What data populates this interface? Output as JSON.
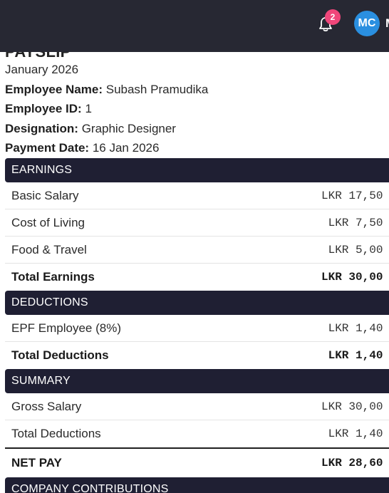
{
  "header": {
    "notification_count": "2",
    "avatar_initials": "MC",
    "user_name_partial": "M"
  },
  "payslip": {
    "title": "PAYSLIP",
    "period": "January 2026",
    "employee_name_label": "Employee Name:",
    "employee_name": "Subash Pramudika",
    "employee_id_label": "Employee ID:",
    "employee_id": "1",
    "designation_label": "Designation:",
    "designation": "Graphic Designer",
    "payment_date_label": "Payment Date:",
    "payment_date": "16 Jan 2026"
  },
  "earnings": {
    "heading": "EARNINGS",
    "rows": [
      {
        "name": "Basic Salary",
        "amount": "LKR 17,50"
      },
      {
        "name": "Cost of Living",
        "amount": " LKR 7,50"
      },
      {
        "name": "Food & Travel",
        "amount": " LKR 5,00"
      }
    ],
    "total_label": "Total Earnings",
    "total_amount": "LKR 30,00"
  },
  "deductions": {
    "heading": "DEDUCTIONS",
    "rows": [
      {
        "name": "EPF Employee (8%)",
        "amount": " LKR 1,40"
      }
    ],
    "total_label": "Total Deductions",
    "total_amount": " LKR 1,40"
  },
  "summary": {
    "heading": "SUMMARY",
    "rows": [
      {
        "name": "Gross Salary",
        "amount": "LKR 30,00"
      },
      {
        "name": "Total Deductions",
        "amount": " LKR 1,40"
      }
    ],
    "net_label": "NET PAY",
    "net_amount": "LKR 28,60"
  },
  "company_contributions": {
    "heading": "COMPANY CONTRIBUTIONS"
  }
}
